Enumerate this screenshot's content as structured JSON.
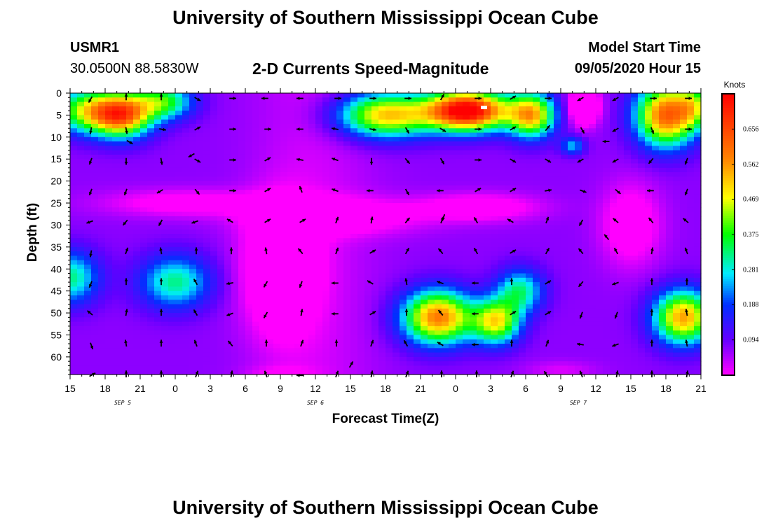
{
  "header": {
    "title": "University of Southern Mississippi Ocean Cube",
    "station_id": "USMR1",
    "station_coords": "30.0500N 88.5830W",
    "chart_title": "2-D Currents Speed-Magnitude",
    "model_label": "Model Start Time",
    "model_time": "09/05/2020 Hour 15"
  },
  "footer": {
    "title": "University of Southern Mississippi Ocean Cube"
  },
  "chart_data": {
    "type": "heatmap",
    "title": "2-D Currents Speed-Magnitude",
    "xlabel": "Forecast Time(Z)",
    "ylabel": "Depth (ft)",
    "x_tick_labels": [
      "15",
      "18",
      "21",
      "0",
      "3",
      "6",
      "9",
      "12",
      "15",
      "18",
      "21",
      "0",
      "3",
      "6",
      "9",
      "12",
      "15",
      "18",
      "21"
    ],
    "day_labels": [
      {
        "label": "SEP 5",
        "tick_index": 1.5
      },
      {
        "label": "SEP 6",
        "tick_index": 7
      },
      {
        "label": "SEP 7",
        "tick_index": 14.5
      }
    ],
    "x_range_hours": [
      0,
      54
    ],
    "y_tick_labels": [
      "0",
      "5",
      "10",
      "15",
      "20",
      "25",
      "30",
      "35",
      "40",
      "45",
      "50",
      "55",
      "60"
    ],
    "y_range_ft": [
      0,
      64
    ],
    "colorbar": {
      "unit_label": "Knots",
      "ticks": [
        "0.656",
        "0.562",
        "0.469",
        "0.375",
        "0.281",
        "0.188",
        "0.094"
      ],
      "tick_values": [
        0.656,
        0.562,
        0.469,
        0.375,
        0.281,
        0.188,
        0.094
      ],
      "range": [
        0,
        0.75
      ]
    },
    "grid": false,
    "speed_blobs": [
      {
        "t": 4.5,
        "d": 5,
        "v": 0.5,
        "st": 2.5,
        "sd": 5
      },
      {
        "t": 1.5,
        "d": 4,
        "v": 0.35,
        "st": 3,
        "sd": 5
      },
      {
        "t": 8,
        "d": 2,
        "v": 0.3,
        "st": 2.5,
        "sd": 4
      },
      {
        "t": 27,
        "d": 5,
        "v": 0.45,
        "st": 4,
        "sd": 5
      },
      {
        "t": 34,
        "d": 4,
        "v": 0.72,
        "st": 3.5,
        "sd": 4.5
      },
      {
        "t": 39.5,
        "d": 5,
        "v": 0.45,
        "st": 2,
        "sd": 5
      },
      {
        "t": 44,
        "d": 3,
        "v": -0.25,
        "st": 1.2,
        "sd": 4
      },
      {
        "t": 43,
        "d": 12,
        "v": 0.18,
        "st": 1,
        "sd": 2
      },
      {
        "t": 51,
        "d": 5,
        "v": 0.55,
        "st": 2.5,
        "sd": 7
      },
      {
        "t": 53.5,
        "d": 3,
        "v": 0.25,
        "st": 1.5,
        "sd": 5
      },
      {
        "t": 31.5,
        "d": 51,
        "v": 0.52,
        "st": 3,
        "sd": 6
      },
      {
        "t": 36.5,
        "d": 52,
        "v": 0.4,
        "st": 2,
        "sd": 5
      },
      {
        "t": 38.5,
        "d": 45,
        "v": 0.25,
        "st": 2,
        "sd": 5
      },
      {
        "t": 52.5,
        "d": 51,
        "v": 0.48,
        "st": 2.5,
        "sd": 6
      },
      {
        "t": 0,
        "d": 42,
        "v": 0.25,
        "st": 2.5,
        "sd": 6
      },
      {
        "t": 9,
        "d": 43,
        "v": 0.25,
        "st": 3,
        "sd": 6
      },
      {
        "t": 23,
        "d": 28,
        "v": -0.12,
        "st": 7,
        "sd": 4
      },
      {
        "t": 35,
        "d": 26,
        "v": -0.12,
        "st": 5,
        "sd": 3
      },
      {
        "t": 10,
        "d": 25,
        "v": -0.1,
        "st": 7,
        "sd": 3
      },
      {
        "t": 18,
        "d": 40,
        "v": -0.18,
        "st": 3,
        "sd": 14
      },
      {
        "t": 48,
        "d": 30,
        "v": -0.12,
        "st": 2.5,
        "sd": 9
      },
      {
        "t": 18,
        "d": 64,
        "v": -0.05,
        "st": 3,
        "sd": 2
      },
      {
        "t": 42,
        "d": 63,
        "v": -0.05,
        "st": 3,
        "sd": 2
      }
    ],
    "vectors": {
      "depths_ft": [
        0,
        7,
        14,
        21,
        28,
        35,
        42,
        49,
        56,
        63
      ],
      "angles_deg": [
        [
          210,
          0,
          0,
          120,
          90,
          270,
          270,
          90,
          90,
          90,
          30,
          90,
          60,
          90,
          240,
          240,
          90,
          90,
          120
        ],
        [
          190,
          170,
          100,
          60,
          90,
          90,
          270,
          280,
          100,
          150,
          120,
          90,
          60,
          40,
          150,
          240,
          160,
          90,
          60
        ],
        [
          200,
          180,
          170,
          120,
          90,
          60,
          280,
          290,
          180,
          140,
          150,
          90,
          120,
          120,
          240,
          240,
          220,
          200,
          80
        ],
        [
          200,
          200,
          240,
          140,
          90,
          60,
          340,
          290,
          270,
          150,
          270,
          60,
          60,
          80,
          110,
          130,
          270,
          200,
          270
        ],
        [
          250,
          220,
          210,
          250,
          300,
          60,
          60,
          20,
          10,
          40,
          20,
          330,
          300,
          20,
          210,
          310,
          320,
          310,
          290
        ],
        [
          190,
          20,
          350,
          0,
          0,
          350,
          320,
          20,
          60,
          30,
          320,
          330,
          60,
          30,
          320,
          330,
          10,
          340,
          320
        ],
        [
          200,
          0,
          0,
          330,
          260,
          210,
          200,
          270,
          300,
          350,
          290,
          270,
          0,
          60,
          220,
          250,
          0,
          0,
          330
        ],
        [
          310,
          10,
          0,
          330,
          250,
          210,
          10,
          270,
          60,
          0,
          320,
          270,
          60,
          60,
          200,
          200,
          0,
          350,
          330
        ],
        [
          160,
          350,
          0,
          340,
          320,
          0,
          20,
          0,
          20,
          330,
          300,
          270,
          0,
          20,
          280,
          250,
          0,
          350,
          330
        ],
        [
          60,
          0,
          0,
          20,
          10,
          340,
          270,
          20,
          10,
          20,
          0,
          0,
          20,
          330,
          340,
          10,
          0,
          10,
          20
        ]
      ]
    },
    "extra_vectors": [
      {
        "t": 10.5,
        "d": 14,
        "a": 240
      },
      {
        "t": 46,
        "d": 11,
        "a": 270
      },
      {
        "t": 46,
        "d": 33,
        "a": 320
      },
      {
        "t": 5,
        "d": 11,
        "a": 120
      },
      {
        "t": 32,
        "d": 28,
        "a": 200
      },
      {
        "t": 24,
        "d": 62,
        "a": 30
      }
    ]
  }
}
